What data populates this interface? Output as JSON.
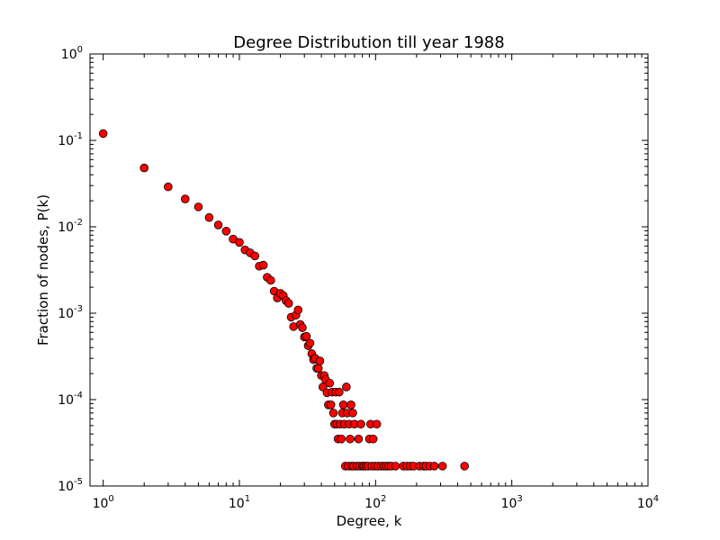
{
  "chart_data": {
    "type": "scatter",
    "title": "Degree Distribution till year 1988",
    "xlabel": "Degree, k",
    "ylabel": "Fraction of nodes, P(k)",
    "xscale": "log",
    "yscale": "log",
    "xlim": [
      0.8,
      10000
    ],
    "ylim": [
      1e-05,
      1
    ],
    "grid": false,
    "x_ticks": [
      {
        "value": 1,
        "base": "10",
        "exp": "0"
      },
      {
        "value": 10,
        "base": "10",
        "exp": "1"
      },
      {
        "value": 100,
        "base": "10",
        "exp": "2"
      },
      {
        "value": 1000,
        "base": "10",
        "exp": "3"
      },
      {
        "value": 10000,
        "base": "10",
        "exp": "4"
      }
    ],
    "y_ticks": [
      {
        "value": 1e-05,
        "base": "10",
        "exp": "-5"
      },
      {
        "value": 0.0001,
        "base": "10",
        "exp": "-4"
      },
      {
        "value": 0.001,
        "base": "10",
        "exp": "-3"
      },
      {
        "value": 0.01,
        "base": "10",
        "exp": "-2"
      },
      {
        "value": 0.1,
        "base": "10",
        "exp": "-1"
      },
      {
        "value": 1,
        "base": "10",
        "exp": "0"
      }
    ],
    "marker_color": "#ff0000",
    "marker_edge_color": "#000000",
    "points": [
      [
        1,
        0.12
      ],
      [
        2,
        0.048
      ],
      [
        3,
        0.029
      ],
      [
        4,
        0.021
      ],
      [
        5,
        0.017
      ],
      [
        6,
        0.0128
      ],
      [
        7,
        0.0105
      ],
      [
        8,
        0.0089
      ],
      [
        9,
        0.0072
      ],
      [
        10,
        0.0066
      ],
      [
        11,
        0.0054
      ],
      [
        12,
        0.005
      ],
      [
        13,
        0.0046
      ],
      [
        14,
        0.0035
      ],
      [
        15,
        0.0036
      ],
      [
        16,
        0.0026
      ],
      [
        17,
        0.0024
      ],
      [
        18,
        0.0018
      ],
      [
        19,
        0.0015
      ],
      [
        20,
        0.0017
      ],
      [
        21,
        0.0016
      ],
      [
        22,
        0.0014
      ],
      [
        23,
        0.0013
      ],
      [
        24,
        0.0009
      ],
      [
        25,
        0.0007
      ],
      [
        26,
        0.00095
      ],
      [
        27,
        0.00109
      ],
      [
        28,
        0.00074
      ],
      [
        29,
        0.00068
      ],
      [
        30,
        0.00053
      ],
      [
        31,
        0.00054
      ],
      [
        32,
        0.00042
      ],
      [
        33,
        0.00045
      ],
      [
        34,
        0.00034
      ],
      [
        35,
        0.00029
      ],
      [
        36,
        0.0003
      ],
      [
        37,
        0.00023
      ],
      [
        38,
        0.00023
      ],
      [
        39,
        0.00028
      ],
      [
        40,
        0.00019
      ],
      [
        41,
        0.00014
      ],
      [
        42,
        0.00019
      ],
      [
        43,
        0.00017
      ],
      [
        44,
        0.00012
      ],
      [
        45,
        8.7e-05
      ],
      [
        46,
        0.000155
      ],
      [
        47,
        8.7e-05
      ],
      [
        48,
        0.000122
      ],
      [
        49,
        7e-05
      ],
      [
        50,
        5.2e-05
      ],
      [
        51,
        0.000122
      ],
      [
        52,
        5.2e-05
      ],
      [
        53,
        3.5e-05
      ],
      [
        54,
        0.000122
      ],
      [
        55,
        5.2e-05
      ],
      [
        56,
        3.5e-05
      ],
      [
        57,
        7e-05
      ],
      [
        58,
        8.7e-05
      ],
      [
        59,
        5.2e-05
      ],
      [
        60,
        1.7e-05
      ],
      [
        61,
        0.00014
      ],
      [
        62,
        7e-05
      ],
      [
        63,
        1.7e-05
      ],
      [
        64,
        5.2e-05
      ],
      [
        65,
        3.5e-05
      ],
      [
        66,
        8.7e-05
      ],
      [
        67,
        1.7e-05
      ],
      [
        68,
        7e-05
      ],
      [
        69,
        1.7e-05
      ],
      [
        70,
        5.2e-05
      ],
      [
        73,
        1.7e-05
      ],
      [
        75,
        3.5e-05
      ],
      [
        76,
        1.7e-05
      ],
      [
        78,
        5.2e-05
      ],
      [
        80,
        1.7e-05
      ],
      [
        82,
        1.7e-05
      ],
      [
        85,
        1.7e-05
      ],
      [
        88,
        1.7e-05
      ],
      [
        90,
        3.5e-05
      ],
      [
        92,
        5.2e-05
      ],
      [
        94,
        1.7e-05
      ],
      [
        96,
        3.5e-05
      ],
      [
        99,
        1.7e-05
      ],
      [
        102,
        5.2e-05
      ],
      [
        104,
        1.7e-05
      ],
      [
        110,
        1.7e-05
      ],
      [
        115,
        1.7e-05
      ],
      [
        120,
        1.7e-05
      ],
      [
        125,
        1.7e-05
      ],
      [
        130,
        1.7e-05
      ],
      [
        140,
        1.7e-05
      ],
      [
        160,
        1.7e-05
      ],
      [
        170,
        1.7e-05
      ],
      [
        180,
        1.7e-05
      ],
      [
        190,
        1.7e-05
      ],
      [
        210,
        1.7e-05
      ],
      [
        225,
        1.7e-05
      ],
      [
        235,
        1.7e-05
      ],
      [
        250,
        1.7e-05
      ],
      [
        270,
        1.7e-05
      ],
      [
        310,
        1.7e-05
      ],
      [
        450,
        1.7e-05
      ]
    ]
  }
}
